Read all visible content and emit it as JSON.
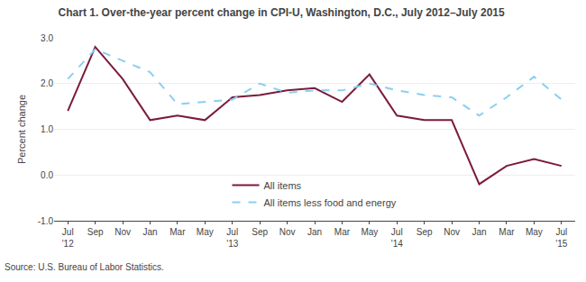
{
  "chart_data": {
    "type": "line",
    "title": "Chart 1. Over-the-year percent change in CPI-U, Washington, D.C., July 2012–July 2015",
    "ylabel": "Percent change",
    "annotations": [
      "Source: U.S. Bureau of Labor Statistics."
    ],
    "categories": [
      "Jul\n'12",
      "Sep",
      "Nov",
      "Jan",
      "Mar",
      "May",
      "Jul\n'13",
      "Sep",
      "Nov",
      "Jan",
      "Mar",
      "May",
      "Jul\n'14",
      "Sep",
      "Nov",
      "Jan",
      "Mar",
      "May",
      "Jul\n'15"
    ],
    "series": [
      {
        "name": "All items",
        "color": "#7b1a3e",
        "line_style": "solid",
        "values": [
          1.4,
          2.8,
          2.1,
          1.2,
          1.3,
          1.2,
          1.7,
          1.75,
          1.85,
          1.9,
          1.6,
          2.2,
          1.3,
          1.2,
          1.2,
          -0.2,
          0.2,
          0.35,
          0.2
        ]
      },
      {
        "name": "All items less food and energy",
        "color": "#89cff0",
        "line_style": "dash",
        "values": [
          2.1,
          2.75,
          2.5,
          2.25,
          1.55,
          1.6,
          1.65,
          2.0,
          1.8,
          1.85,
          1.85,
          2.0,
          1.85,
          1.75,
          1.7,
          1.3,
          1.7,
          2.15,
          1.65
        ]
      }
    ],
    "ylim": [
      -1.0,
      3.0
    ],
    "yticks": [
      {
        "value": -1.0,
        "label": "-1.0"
      },
      {
        "value": 0.0,
        "label": "0.0"
      },
      {
        "value": 1.0,
        "label": "1.0"
      },
      {
        "value": 2.0,
        "label": "2.0"
      },
      {
        "value": 3.0,
        "label": "3.0"
      }
    ],
    "grid": true,
    "legend": "lower center"
  }
}
